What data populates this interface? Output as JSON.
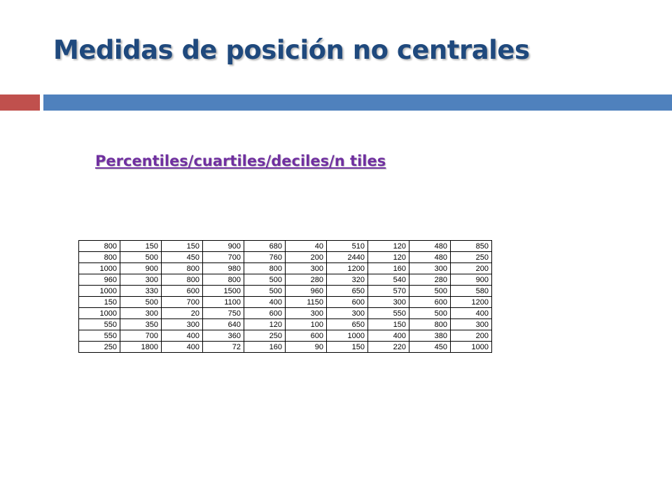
{
  "slide": {
    "title": "Medidas de posición no centrales",
    "subtitle": "Percentiles/cuartiles/deciles/n tiles",
    "colors": {
      "title": "#1f497d",
      "accent_red": "#c0504d",
      "accent_blue": "#4f81bd",
      "subtitle": "#7030a0"
    }
  },
  "table": {
    "rows": [
      [
        "800",
        "150",
        "150",
        "900",
        "680",
        "40",
        "510",
        "120",
        "480",
        "850"
      ],
      [
        "800",
        "500",
        "450",
        "700",
        "760",
        "200",
        "2440",
        "120",
        "480",
        "250"
      ],
      [
        "1000",
        "900",
        "800",
        "980",
        "800",
        "300",
        "1200",
        "160",
        "300",
        "200"
      ],
      [
        "960",
        "300",
        "800",
        "800",
        "500",
        "280",
        "320",
        "540",
        "280",
        "900"
      ],
      [
        "1000",
        "330",
        "600",
        "1500",
        "500",
        "960",
        "650",
        "570",
        "500",
        "580"
      ],
      [
        "150",
        "500",
        "700",
        "1100",
        "400",
        "1150",
        "600",
        "300",
        "600",
        "1200"
      ],
      [
        "1000",
        "300",
        "20",
        "750",
        "600",
        "300",
        "300",
        "550",
        "500",
        "400"
      ],
      [
        "550",
        "350",
        "300",
        "640",
        "120",
        "100",
        "650",
        "150",
        "800",
        "300"
      ],
      [
        "550",
        "700",
        "400",
        "360",
        "250",
        "600",
        "1000",
        "400",
        "380",
        "200"
      ],
      [
        "250",
        "1800",
        "400",
        "72",
        "160",
        "90",
        "150",
        "220",
        "450",
        "1000"
      ]
    ]
  }
}
